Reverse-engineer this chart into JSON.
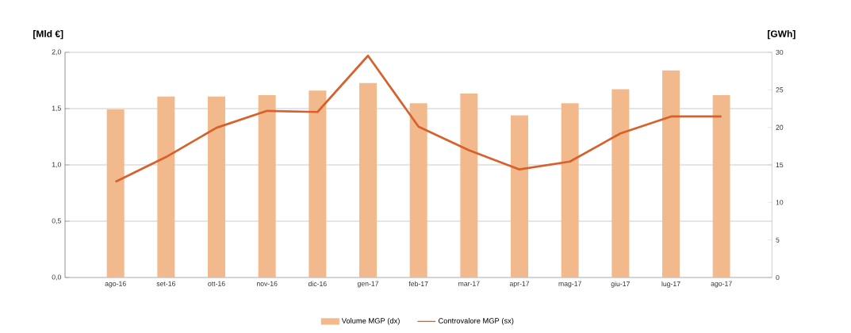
{
  "chart_data": {
    "type": "bar",
    "ylabel": "[Mld €]",
    "y2label": "[GWh]",
    "categories": [
      "ago-16",
      "set-16",
      "ott-16",
      "nov-16",
      "dic-16",
      "gen-17",
      "feb-17",
      "mar-17",
      "apr-17",
      "mag-17",
      "giu-17",
      "lug-17",
      "ago-17"
    ],
    "series": [
      {
        "name": "Volume MGP (dx)",
        "axis": "y2",
        "color": "#f2b98c",
        "values": [
          22.4,
          24.1,
          24.1,
          24.3,
          24.9,
          25.9,
          23.2,
          24.5,
          21.6,
          23.2,
          25.1,
          27.6,
          24.3
        ]
      },
      {
        "name": "Controvalore MGP (sx)",
        "type": "line",
        "color": "#d8602a",
        "values": [
          0.85,
          1.07,
          1.33,
          1.48,
          1.47,
          1.97,
          1.34,
          1.13,
          0.96,
          1.03,
          1.28,
          1.43,
          1.43
        ]
      }
    ],
    "ylim": [
      0,
      2
    ],
    "yticks": [
      {
        "value": 0,
        "label": "0,0"
      },
      {
        "value": 0.5,
        "label": "0,5"
      },
      {
        "value": 1,
        "label": "1,0"
      },
      {
        "value": 1.5,
        "label": "1,5"
      },
      {
        "value": 2,
        "label": "2,0"
      }
    ],
    "y2lim": [
      0,
      30
    ],
    "y2ticks": [
      0,
      5,
      10,
      15,
      20,
      25,
      30
    ],
    "grid": "y",
    "legend": "bottom"
  }
}
